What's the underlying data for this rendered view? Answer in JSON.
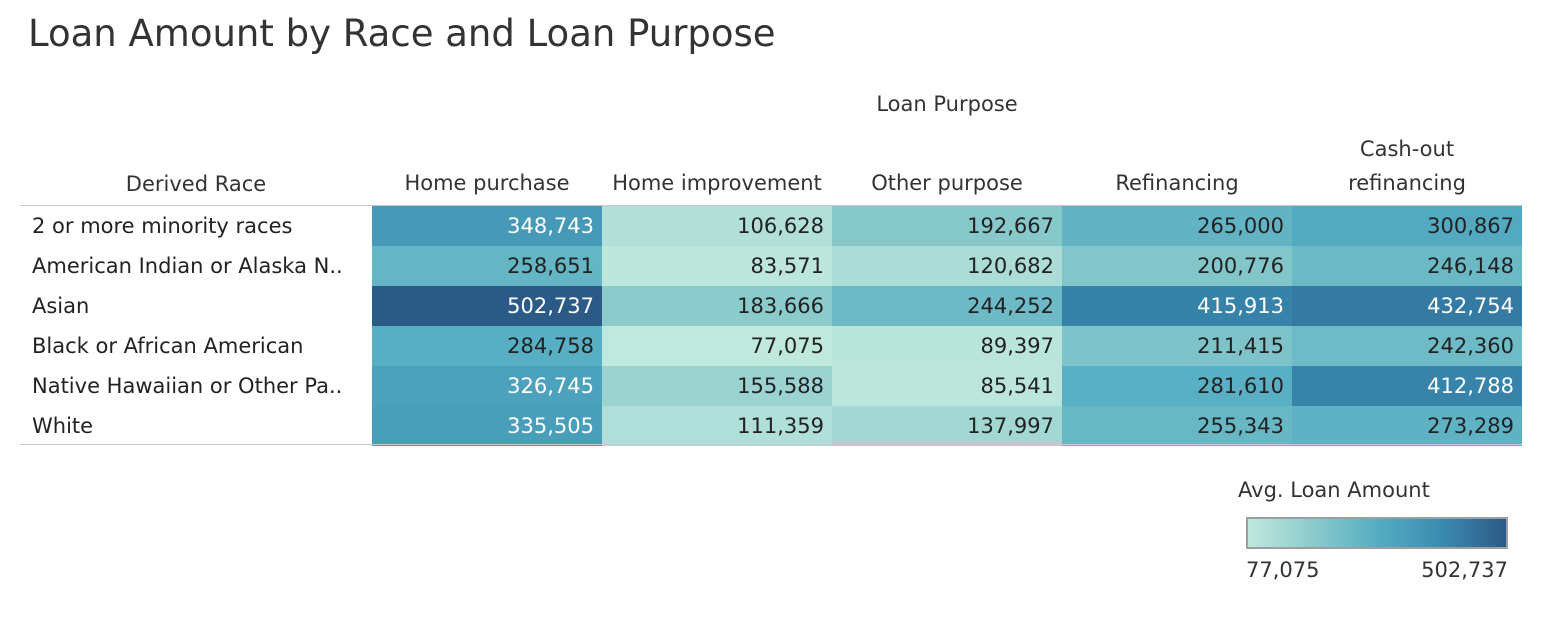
{
  "chart_data": {
    "type": "heatmap",
    "title": "Loan Amount by Race and Loan Purpose",
    "column_group_label": "Loan Purpose",
    "row_header_label": "Derived Race",
    "columns": [
      {
        "label": "Home purchase",
        "lines": [
          "Home purchase"
        ]
      },
      {
        "label": "Home improvement",
        "lines": [
          "Home improvement"
        ]
      },
      {
        "label": "Other purpose",
        "lines": [
          "Other purpose"
        ]
      },
      {
        "label": "Refinancing",
        "lines": [
          "Refinancing"
        ]
      },
      {
        "label": "Cash-out refinancing",
        "lines": [
          "Cash-out",
          "refinancing"
        ]
      }
    ],
    "rows": [
      {
        "label": "2 or more minority races",
        "values": [
          348743,
          106628,
          192667,
          265000,
          300867
        ]
      },
      {
        "label": "American Indian or Alaska N..",
        "values": [
          258651,
          83571,
          120682,
          200776,
          246148
        ]
      },
      {
        "label": "Asian",
        "values": [
          502737,
          183666,
          244252,
          415913,
          432754
        ]
      },
      {
        "label": "Black or African American",
        "values": [
          284758,
          77075,
          89397,
          211415,
          242360
        ]
      },
      {
        "label": "Native Hawaiian or Other Pa..",
        "values": [
          326745,
          155588,
          85541,
          281610,
          412788
        ]
      },
      {
        "label": "White",
        "values": [
          335505,
          111359,
          137997,
          255343,
          273289
        ]
      }
    ],
    "legend": {
      "title": "Avg. Loan Amount",
      "min": 77075,
      "max": 502737,
      "min_label": "77,075",
      "max_label": "502,737",
      "placement": "bottom-right"
    },
    "color_scale": [
      "#c0e8dd",
      "#8ccbcc",
      "#55adc2",
      "#3a8bb0",
      "#2c5a87"
    ]
  }
}
